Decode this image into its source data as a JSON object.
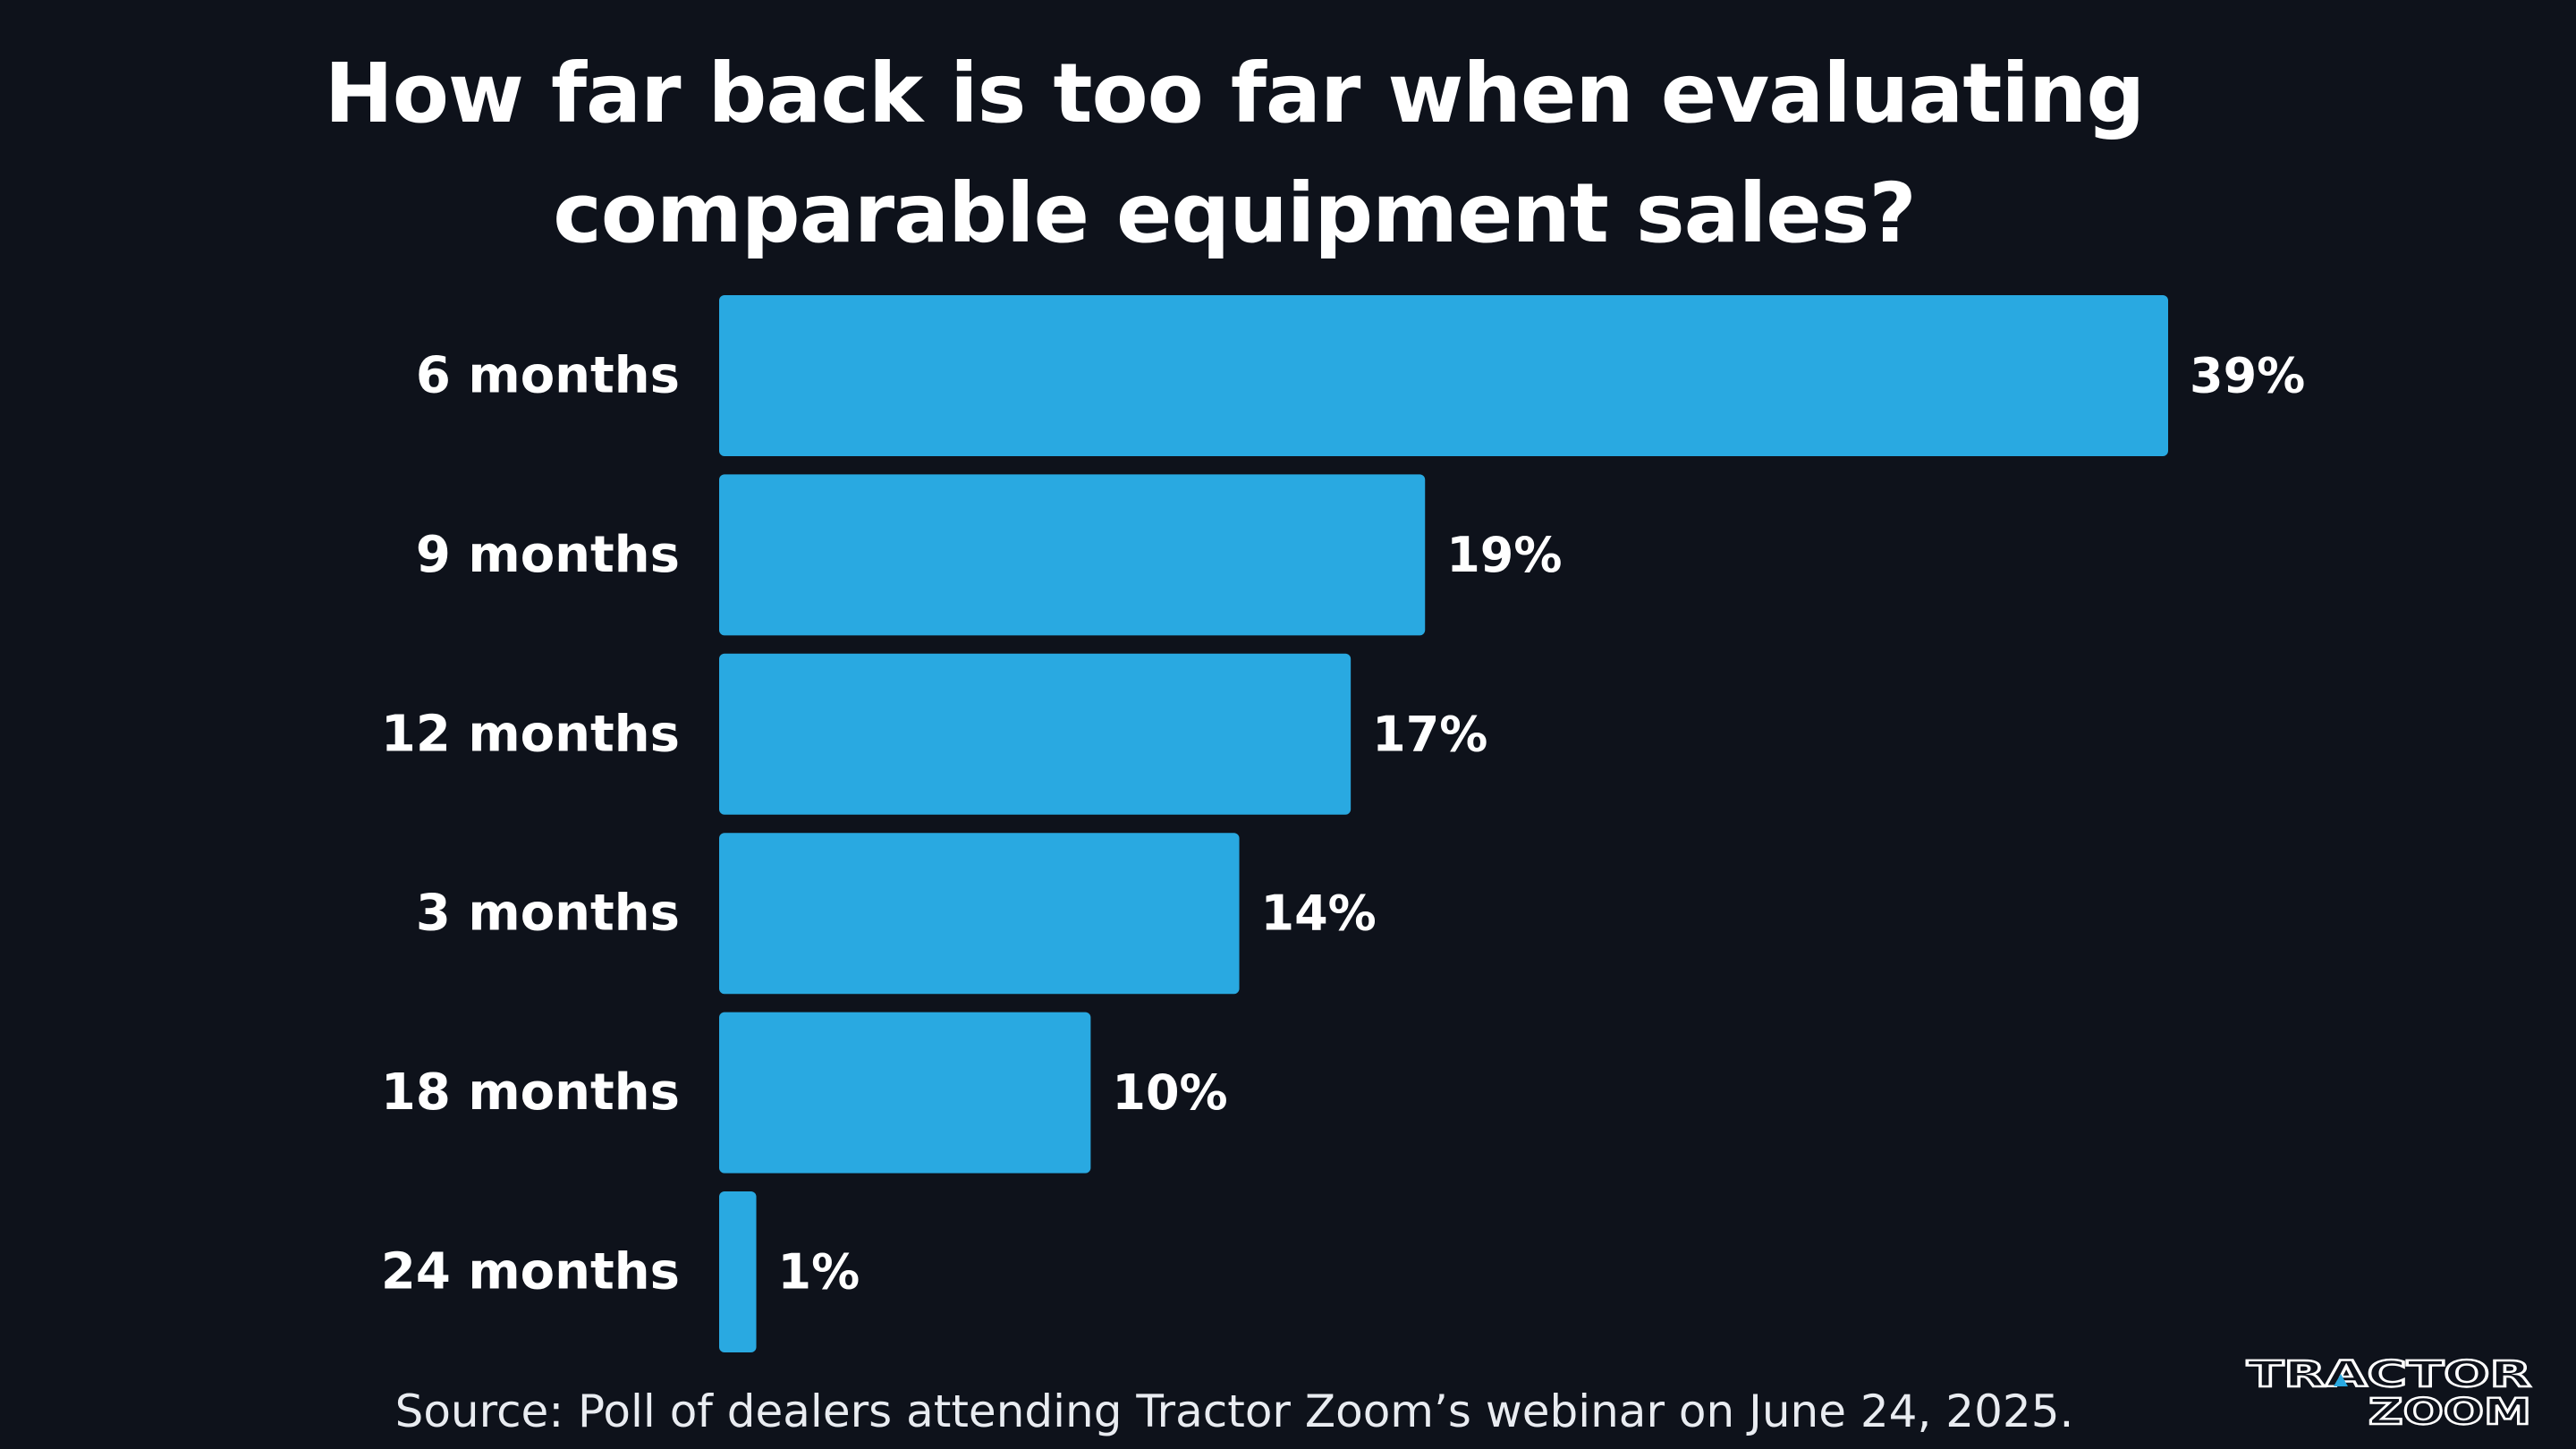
{
  "chart_data": {
    "type": "bar",
    "orientation": "horizontal",
    "title_lines": [
      "How far back is too far when evaluating",
      "comparable equipment sales?"
    ],
    "categories": [
      "6 months",
      "9 months",
      "12 months",
      "3 months",
      "18 months",
      "24 months"
    ],
    "values": [
      39,
      19,
      17,
      14,
      10,
      1
    ],
    "value_labels": [
      "39%",
      "19%",
      "17%",
      "14%",
      "10%",
      "1%"
    ],
    "unit": "%",
    "xlim": [
      0,
      39
    ],
    "grid": false,
    "legend": "none",
    "bar_color": "#29a9e1",
    "background_color": "#0e121b",
    "text_color": "#ffffff"
  },
  "source": "Source: Poll of dealers attending Tractor Zoom’s webinar on June 24, 2025.",
  "logo": {
    "line1": "TRACTOR",
    "line2": "ZOOM",
    "accent_color": "#29a9e1"
  }
}
